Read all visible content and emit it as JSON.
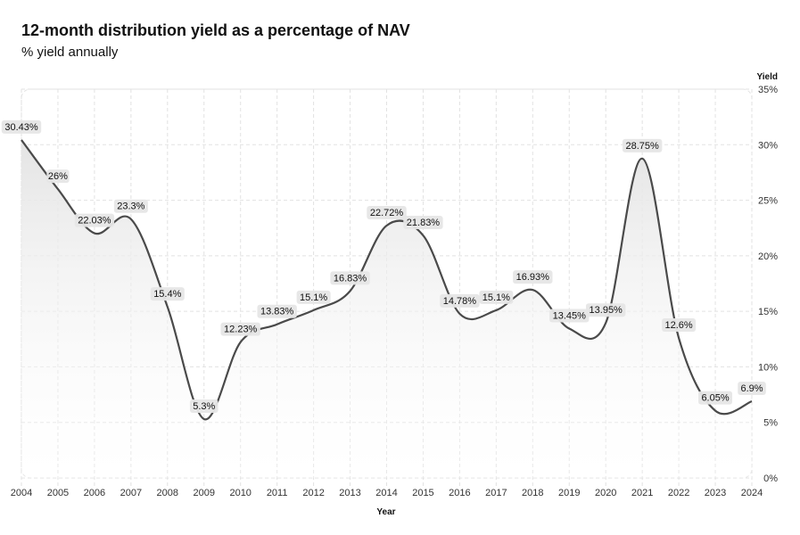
{
  "chart_data": {
    "type": "line",
    "title": "12-month distribution yield as a percentage of NAV",
    "subtitle": "% yield annually",
    "xlabel": "Year",
    "ylabel": "Yield",
    "x": [
      2004,
      2005,
      2006,
      2007,
      2008,
      2009,
      2010,
      2011,
      2012,
      2013,
      2014,
      2015,
      2016,
      2017,
      2018,
      2019,
      2020,
      2021,
      2022,
      2023,
      2024
    ],
    "values": [
      30.43,
      26,
      22.03,
      23.3,
      15.4,
      5.3,
      12.23,
      13.83,
      15.1,
      16.83,
      22.72,
      21.83,
      14.78,
      15.1,
      16.93,
      13.45,
      13.95,
      28.75,
      12.6,
      6.05,
      6.9
    ],
    "data_labels": [
      "30.43%",
      "26%",
      "22.03%",
      "23.3%",
      "15.4%",
      "5.3%",
      "12.23%",
      "13.83%",
      "15.1%",
      "16.83%",
      "22.72%",
      "21.83%",
      "14.78%",
      "15.1%",
      "16.93%",
      "13.45%",
      "13.95%",
      "28.75%",
      "12.6%",
      "6.05%",
      "6.9%"
    ],
    "yticks": [
      "0%",
      "5%",
      "10%",
      "15%",
      "20%",
      "25%",
      "30%",
      "35%"
    ],
    "ylim": [
      0,
      35
    ],
    "xlim": [
      2004,
      2024
    ],
    "grid": true,
    "line_color": "#4a4a4a"
  }
}
